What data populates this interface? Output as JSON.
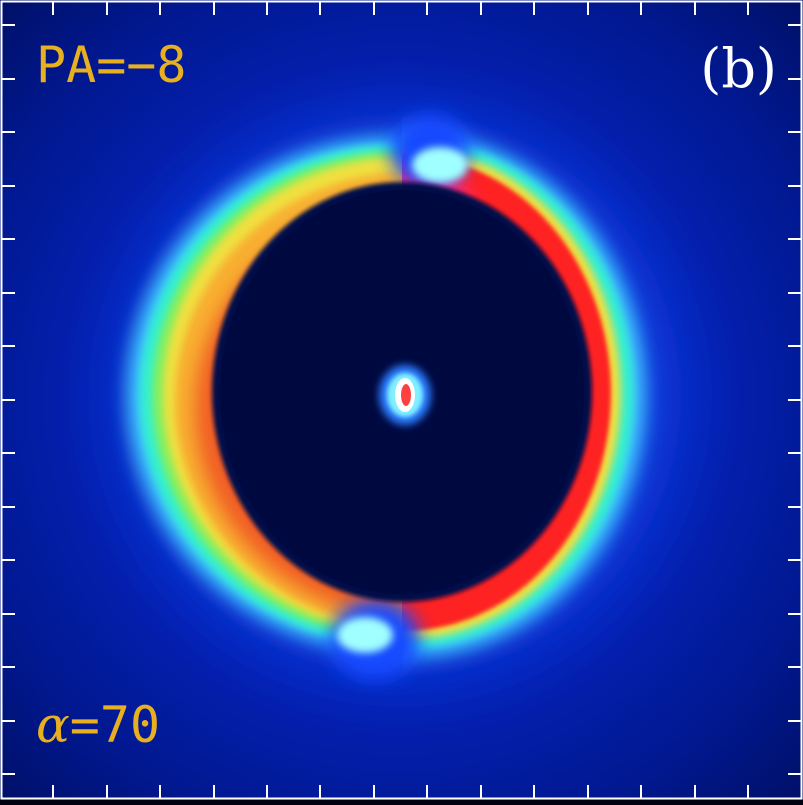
{
  "panel": {
    "position_angle_label": "PA=−8",
    "panel_tag": "(b)",
    "alpha_symbol": "α",
    "alpha_value": "=70"
  },
  "colors": {
    "background": "#00108a",
    "label_gold": "#e8b020",
    "panel_tag": "#ffffff",
    "frame": "#ffffff"
  }
}
